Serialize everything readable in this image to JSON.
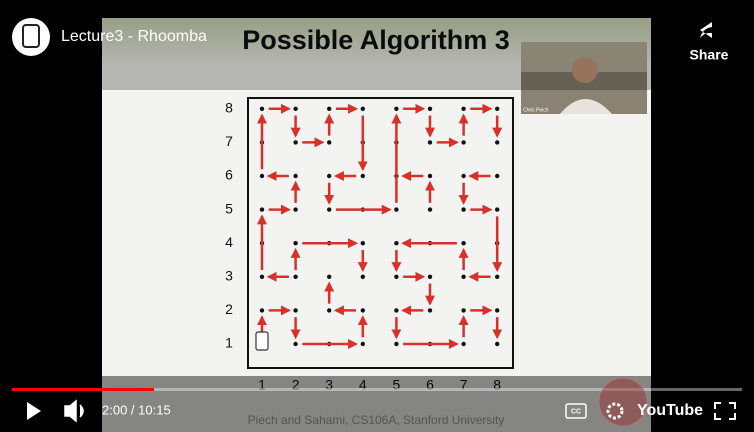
{
  "player": {
    "video_title": "Lecture3 - Rhoomba",
    "share_label": "Share",
    "time": "2:00 / 10:15",
    "cc_label": "CC",
    "brand": "YouTube"
  },
  "slide": {
    "title": "Possible Algorithm 3",
    "webcam_name": "Chris Piech",
    "row_labels": [
      "8",
      "7",
      "6",
      "5",
      "4",
      "3",
      "2",
      "1"
    ],
    "column_labels": [
      "1",
      "2",
      "3",
      "4",
      "5",
      "6",
      "7",
      "8"
    ],
    "footer": "Piech and Sahami, CS106A, Stanford University"
  }
}
